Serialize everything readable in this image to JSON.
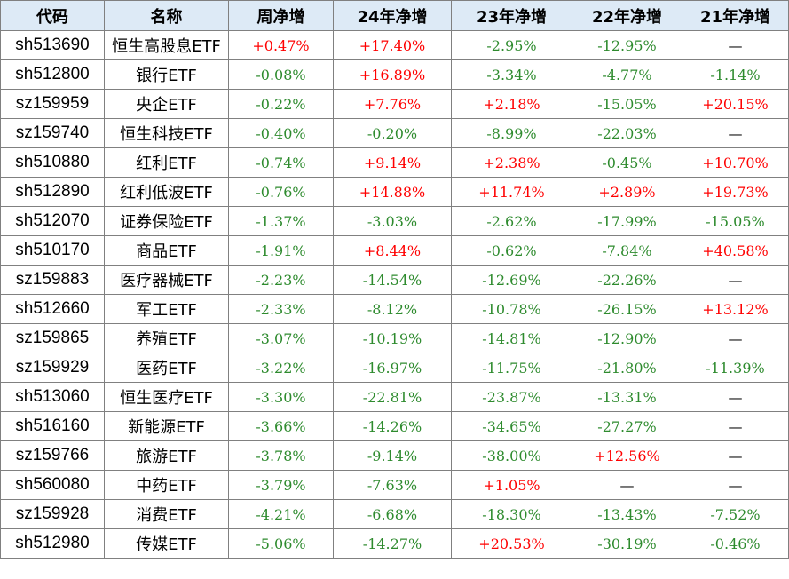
{
  "table": {
    "headers": [
      "代码",
      "名称",
      "周净增",
      "24年净增",
      "23年净增",
      "22年净增",
      "21年净增"
    ],
    "rows": [
      [
        "sh513690",
        "恒生高股息ETF",
        "+0.47%",
        "+17.40%",
        "-2.95%",
        "-12.95%",
        "—"
      ],
      [
        "sh512800",
        "银行ETF",
        "-0.08%",
        "+16.89%",
        "-3.34%",
        "-4.77%",
        "-1.14%"
      ],
      [
        "sz159959",
        "央企ETF",
        "-0.22%",
        "+7.76%",
        "+2.18%",
        "-15.05%",
        "+20.15%"
      ],
      [
        "sz159740",
        "恒生科技ETF",
        "-0.40%",
        "-0.20%",
        "-8.99%",
        "-22.03%",
        "—"
      ],
      [
        "sh510880",
        "红利ETF",
        "-0.74%",
        "+9.14%",
        "+2.38%",
        "-0.45%",
        "+10.70%"
      ],
      [
        "sh512890",
        "红利低波ETF",
        "-0.76%",
        "+14.88%",
        "+11.74%",
        "+2.89%",
        "+19.73%"
      ],
      [
        "sh512070",
        "证券保险ETF",
        "-1.37%",
        "-3.03%",
        "-2.62%",
        "-17.99%",
        "-15.05%"
      ],
      [
        "sh510170",
        "商品ETF",
        "-1.91%",
        "+8.44%",
        "-0.62%",
        "-7.84%",
        "+40.58%"
      ],
      [
        "sz159883",
        "医疗器械ETF",
        "-2.23%",
        "-14.54%",
        "-12.69%",
        "-22.26%",
        "—"
      ],
      [
        "sh512660",
        "军工ETF",
        "-2.33%",
        "-8.12%",
        "-10.78%",
        "-26.15%",
        "+13.12%"
      ],
      [
        "sz159865",
        "养殖ETF",
        "-3.07%",
        "-10.19%",
        "-14.81%",
        "-12.90%",
        "—"
      ],
      [
        "sz159929",
        "医药ETF",
        "-3.22%",
        "-16.97%",
        "-11.75%",
        "-21.80%",
        "-11.39%"
      ],
      [
        "sh513060",
        "恒生医疗ETF",
        "-3.30%",
        "-22.81%",
        "-23.87%",
        "-13.31%",
        "—"
      ],
      [
        "sh516160",
        "新能源ETF",
        "-3.66%",
        "-14.26%",
        "-34.65%",
        "-27.27%",
        "—"
      ],
      [
        "sz159766",
        "旅游ETF",
        "-3.78%",
        "-9.14%",
        "-38.00%",
        "+12.56%",
        "—"
      ],
      [
        "sh560080",
        "中药ETF",
        "-3.79%",
        "-7.63%",
        "+1.05%",
        "—",
        "—"
      ],
      [
        "sz159928",
        "消费ETF",
        "-4.21%",
        "-6.68%",
        "-18.30%",
        "-13.43%",
        "-7.52%"
      ],
      [
        "sh512980",
        "传媒ETF",
        "-5.06%",
        "-14.27%",
        "+20.53%",
        "-30.19%",
        "-0.46%"
      ]
    ]
  },
  "colors": {
    "header_bg": "#ddeaf6",
    "positive": "#ff0000",
    "negative": "#2e8b2e",
    "border": "#808080"
  }
}
